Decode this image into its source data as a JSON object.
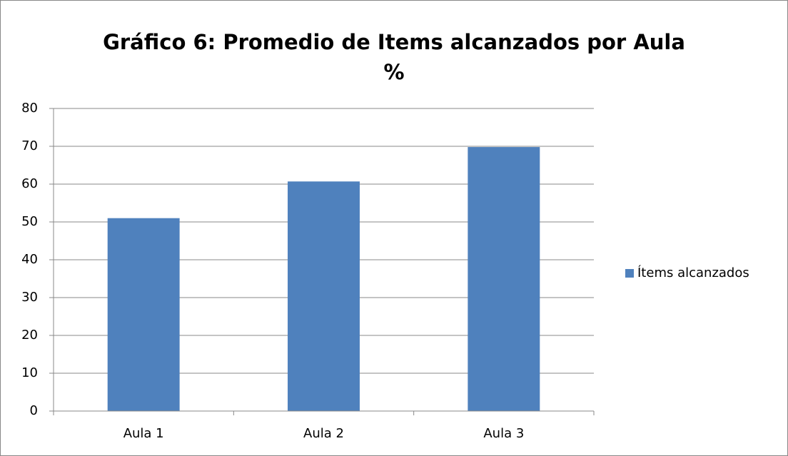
{
  "chart_data": {
    "type": "bar",
    "title": "Gráfico 6: Promedio de Items alcanzados por Aula\n%",
    "categories": [
      "Aula 1",
      "Aula 2",
      "Aula 3"
    ],
    "series": [
      {
        "name": "Ítems alcanzados",
        "color": "#4f81bd",
        "values": [
          51,
          60.7,
          69.8
        ]
      }
    ],
    "ylim": [
      0,
      80
    ],
    "yticks": [
      0,
      10,
      20,
      30,
      40,
      50,
      60,
      70,
      80
    ],
    "grid": true,
    "legend": "right"
  }
}
